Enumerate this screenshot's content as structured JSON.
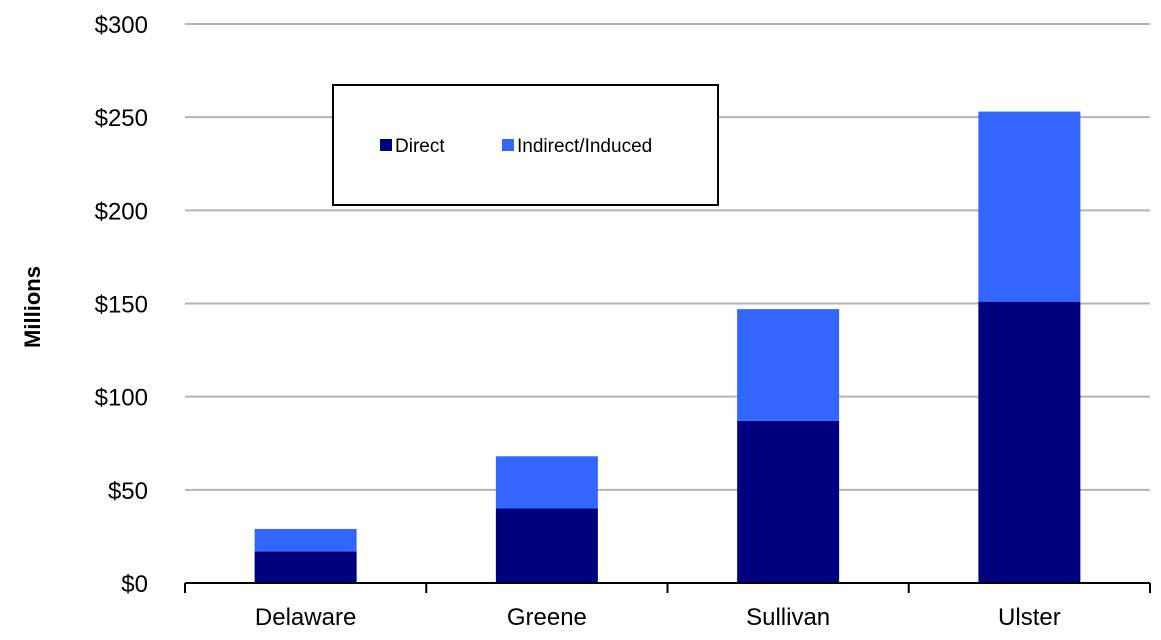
{
  "chart_data": {
    "type": "bar",
    "stacked": true,
    "title": "",
    "xlabel": "",
    "ylabel": "Millions",
    "categories": [
      "Delaware",
      "Greene",
      "Sullivan",
      "Ulster"
    ],
    "series": [
      {
        "name": "Direct",
        "color": "#00007f",
        "values": [
          17,
          40,
          87,
          151
        ]
      },
      {
        "name": "Indirect/Induced",
        "color": "#3366ff",
        "values": [
          12,
          28,
          60,
          102
        ]
      }
    ],
    "ylim": [
      0,
      300
    ],
    "yticks": [
      0,
      50,
      100,
      150,
      200,
      250,
      300
    ],
    "ytick_labels": [
      "$0",
      "$50",
      "$100",
      "$150",
      "$200",
      "$250",
      "$300"
    ],
    "grid": true,
    "legend_position": "top-left-inside"
  }
}
